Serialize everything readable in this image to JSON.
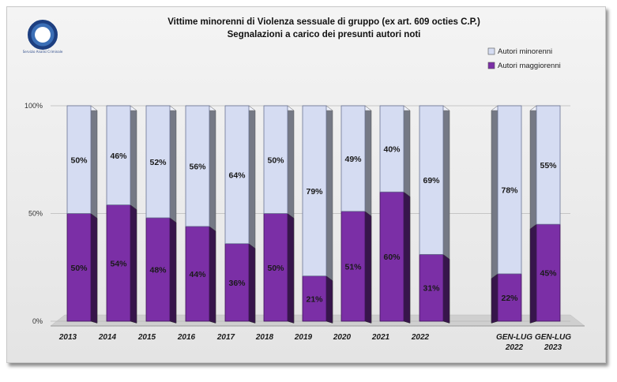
{
  "logo": {
    "caption": "Servizio Analisi Criminale"
  },
  "chart_data": {
    "type": "bar",
    "title": "Vittime minorenni di Violenza sessuale di gruppo (ex art. 609 octies C.P.)",
    "subtitle": "Segnalazioni a carico dei presunti autori noti",
    "categories": [
      "2013",
      "2014",
      "2015",
      "2016",
      "2017",
      "2018",
      "2019",
      "2020",
      "2021",
      "2022",
      "GEN-LUG 2022",
      "GEN-LUG 2023"
    ],
    "series": [
      {
        "name": "Autori maggiorenni",
        "color": "#7b2fa6",
        "values": [
          50,
          54,
          48,
          44,
          36,
          50,
          21,
          51,
          60,
          31,
          22,
          45
        ]
      },
      {
        "name": "Autori minorenni",
        "color": "#d5dcf2",
        "values": [
          50,
          46,
          52,
          56,
          64,
          50,
          79,
          49,
          40,
          69,
          78,
          55
        ]
      }
    ],
    "legend_order": [
      "Autori minorenni",
      "Autori maggiorenni"
    ],
    "ytick_labels": [
      "0%",
      "50%",
      "100%"
    ],
    "ylim": [
      0,
      100
    ],
    "stacked": true,
    "legend": "top-right"
  }
}
